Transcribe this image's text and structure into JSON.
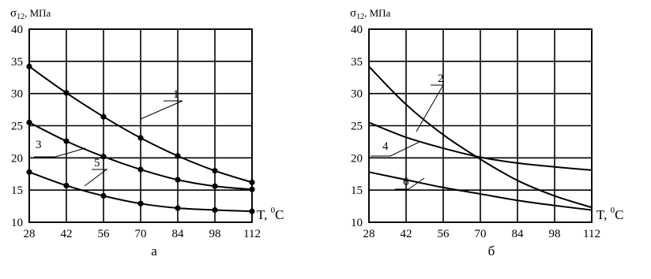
{
  "chart_data": [
    {
      "type": "line",
      "panel_label": "а",
      "ylabel_sym": "σ",
      "ylabel_sub": "12",
      "ylabel_unit": ", МПа",
      "xlabel_pre": "T, ",
      "xlabel_sup": "0",
      "xlabel_post": "C",
      "x": [
        28,
        42,
        56,
        70,
        84,
        98,
        112
      ],
      "xlim": [
        28,
        112
      ],
      "ylim": [
        10,
        40
      ],
      "yticks": [
        10,
        15,
        20,
        25,
        30,
        35,
        40
      ],
      "grid": true,
      "markers": true,
      "series": [
        {
          "name": "1",
          "values": [
            34.2,
            30.1,
            26.4,
            23.1,
            20.3,
            18.0,
            16.2
          ]
        },
        {
          "name": "3",
          "values": [
            25.5,
            22.6,
            20.2,
            18.2,
            16.6,
            15.6,
            15.1
          ]
        },
        {
          "name": "5",
          "values": [
            17.8,
            15.7,
            14.1,
            12.9,
            12.2,
            11.9,
            11.7
          ]
        }
      ]
    },
    {
      "type": "line",
      "panel_label": "б",
      "ylabel_sym": "σ",
      "ylabel_sub": "12",
      "ylabel_unit": ", МПа",
      "xlabel_pre": "T, ",
      "xlabel_sup": "0",
      "xlabel_post": "C",
      "x": [
        28,
        42,
        56,
        70,
        84,
        98,
        112
      ],
      "xlim": [
        28,
        112
      ],
      "ylim": [
        10,
        40
      ],
      "yticks": [
        10,
        15,
        20,
        25,
        30,
        35,
        40
      ],
      "grid": true,
      "markers": false,
      "series": [
        {
          "name": "2",
          "values": [
            34.2,
            28.3,
            23.6,
            19.8,
            16.5,
            14.1,
            12.3
          ]
        },
        {
          "name": "4",
          "values": [
            25.5,
            23.2,
            21.5,
            20.1,
            19.2,
            18.6,
            18.1
          ]
        },
        {
          "name": "6",
          "values": [
            17.8,
            16.6,
            15.4,
            14.4,
            13.4,
            12.6,
            11.9
          ]
        }
      ]
    }
  ]
}
